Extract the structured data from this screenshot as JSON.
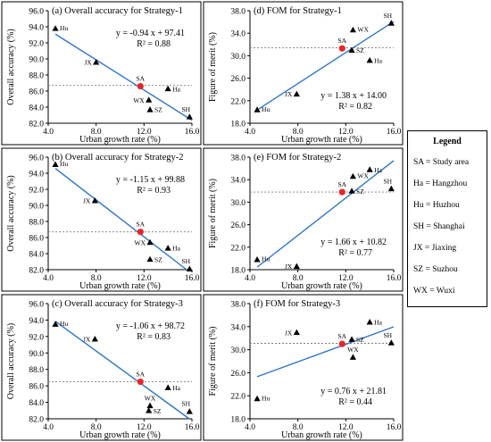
{
  "chart_data": [
    {
      "type": "scatter",
      "panel": "(a)",
      "title": "(a) Overall accuracy for Strategy-1",
      "xlabel": "Urban growth rate (%)",
      "ylabel": "Overall accuracy (%)",
      "xlim": [
        4.0,
        16.0
      ],
      "ylim": [
        82.0,
        96.0
      ],
      "xticks": [
        "4.0",
        "8.0",
        "12.0",
        "16.0"
      ],
      "yticks": [
        "82.0",
        "84.0",
        "86.0",
        "88.0",
        "90.0",
        "92.0",
        "94.0",
        "96.0"
      ],
      "reference_y": 86.7,
      "points": [
        {
          "label": "Hu",
          "x": 4.6,
          "y": 93.8
        },
        {
          "label": "JX",
          "x": 8.0,
          "y": 89.6
        },
        {
          "label": "SA",
          "x": 11.7,
          "y": 86.6,
          "highlight": true
        },
        {
          "label": "Ha",
          "x": 14.0,
          "y": 86.3
        },
        {
          "label": "WX",
          "x": 12.4,
          "y": 84.9
        },
        {
          "label": "SZ",
          "x": 12.5,
          "y": 83.7
        },
        {
          "label": "SH",
          "x": 15.8,
          "y": 82.8
        }
      ],
      "fit": {
        "slope": -0.94,
        "intercept": 97.41
      },
      "equation": "y = -0.94 x + 97.41",
      "r2": "R² = 0.88"
    },
    {
      "type": "scatter",
      "panel": "(d)",
      "title": "(d) FOM for Strategy-1",
      "xlabel": "Urban growth rate (%)",
      "ylabel": "Figure of merit (%)",
      "xlim": [
        4.0,
        16.0
      ],
      "ylim": [
        18.0,
        38.0
      ],
      "xticks": [
        "4.0",
        "8.0",
        "12.0",
        "16.0"
      ],
      "yticks": [
        "18.0",
        "22.0",
        "26.0",
        "30.0",
        "34.0",
        "38.0"
      ],
      "reference_y": 31.4,
      "points": [
        {
          "label": "Hu",
          "x": 4.6,
          "y": 20.4
        },
        {
          "label": "JX",
          "x": 7.9,
          "y": 23.2
        },
        {
          "label": "SA",
          "x": 11.7,
          "y": 31.3,
          "highlight": true
        },
        {
          "label": "WX",
          "x": 12.6,
          "y": 34.6
        },
        {
          "label": "SZ",
          "x": 12.5,
          "y": 31.0
        },
        {
          "label": "Ha",
          "x": 14.0,
          "y": 29.2
        },
        {
          "label": "SH",
          "x": 15.8,
          "y": 35.8
        }
      ],
      "fit": {
        "slope": 1.38,
        "intercept": 14.0
      },
      "equation": "y = 1.38 x + 14.00",
      "r2": "R² = 0.82"
    },
    {
      "type": "scatter",
      "panel": "(b)",
      "title": "(b) Overall accuracy for Strategy-2",
      "xlabel": "Urban growth rate (%)",
      "ylabel": "Overall accuracy (%)",
      "xlim": [
        4.0,
        16.0
      ],
      "ylim": [
        82.0,
        96.0
      ],
      "xticks": [
        "4.0",
        "8.0",
        "12.0",
        "16.0"
      ],
      "yticks": [
        "82.0",
        "84.0",
        "86.0",
        "88.0",
        "90.0",
        "92.0",
        "94.0",
        "96.0"
      ],
      "reference_y": 86.7,
      "points": [
        {
          "label": "Hu",
          "x": 4.6,
          "y": 95.1
        },
        {
          "label": "JX",
          "x": 7.9,
          "y": 90.6
        },
        {
          "label": "SA",
          "x": 11.7,
          "y": 86.7,
          "highlight": true
        },
        {
          "label": "WX",
          "x": 12.5,
          "y": 85.4
        },
        {
          "label": "Ha",
          "x": 14.0,
          "y": 84.7
        },
        {
          "label": "SZ",
          "x": 12.5,
          "y": 83.3
        },
        {
          "label": "SH",
          "x": 15.8,
          "y": 82.1
        }
      ],
      "fit": {
        "slope": -1.15,
        "intercept": 99.88
      },
      "equation": "y = -1.15 x + 99.88",
      "r2": "R² = 0.93"
    },
    {
      "type": "scatter",
      "panel": "(e)",
      "title": "(e) FOM for Strategy-2",
      "xlabel": "Urban growth rate (%)",
      "ylabel": "Figure of merit (%)",
      "xlim": [
        4.0,
        16.0
      ],
      "ylim": [
        18.0,
        38.0
      ],
      "xticks": [
        "4.0",
        "8.0",
        "12.0",
        "16.0"
      ],
      "yticks": [
        "18.0",
        "22.0",
        "26.0",
        "30.0",
        "34.0",
        "38.0"
      ],
      "reference_y": 31.8,
      "points": [
        {
          "label": "Hu",
          "x": 4.6,
          "y": 19.8
        },
        {
          "label": "JX",
          "x": 7.9,
          "y": 18.6
        },
        {
          "label": "SA",
          "x": 11.7,
          "y": 31.8,
          "highlight": true
        },
        {
          "label": "WX",
          "x": 12.6,
          "y": 34.6
        },
        {
          "label": "SZ",
          "x": 12.5,
          "y": 32.0
        },
        {
          "label": "Ha",
          "x": 14.0,
          "y": 35.8
        },
        {
          "label": "SH",
          "x": 15.8,
          "y": 32.4
        }
      ],
      "fit": {
        "slope": 1.66,
        "intercept": 10.82
      },
      "equation": "y = 1.66 x + 10.82",
      "r2": "R² = 0.77"
    },
    {
      "type": "scatter",
      "panel": "(c)",
      "title": "(c) Overall accuracy for Strategy-3",
      "xlabel": "Urban growth rate (%)",
      "ylabel": "Overall accuracy (%)",
      "xlim": [
        4.0,
        16.0
      ],
      "ylim": [
        82.0,
        96.0
      ],
      "xticks": [
        "4.0",
        "8.0",
        "12.0",
        "16.0"
      ],
      "yticks": [
        "82.0",
        "84.0",
        "86.0",
        "88.0",
        "90.0",
        "92.0",
        "94.0",
        "96.0"
      ],
      "reference_y": 86.5,
      "points": [
        {
          "label": "Hu",
          "x": 4.6,
          "y": 93.5
        },
        {
          "label": "JX",
          "x": 7.9,
          "y": 91.7
        },
        {
          "label": "SA",
          "x": 11.7,
          "y": 86.5,
          "highlight": true
        },
        {
          "label": "Ha",
          "x": 14.0,
          "y": 85.8
        },
        {
          "label": "WX",
          "x": 12.5,
          "y": 83.6
        },
        {
          "label": "SZ",
          "x": 12.4,
          "y": 83.0
        },
        {
          "label": "SH",
          "x": 15.8,
          "y": 82.9
        }
      ],
      "fit": {
        "slope": -1.06,
        "intercept": 98.72
      },
      "equation": "y = -1.06 x + 98.72",
      "r2": "R² = 0.83"
    },
    {
      "type": "scatter",
      "panel": "(f)",
      "title": "(f) FOM for Strategy-3",
      "xlabel": "Urban growth rate (%)",
      "ylabel": "Figure of merit (%)",
      "xlim": [
        4.0,
        16.0
      ],
      "ylim": [
        18.0,
        38.0
      ],
      "xticks": [
        "4.0",
        "8.0",
        "12.0",
        "16.0"
      ],
      "yticks": [
        "18.0",
        "22.0",
        "26.0",
        "30.0",
        "34.0",
        "38.0"
      ],
      "reference_y": 31.1,
      "points": [
        {
          "label": "Hu",
          "x": 4.6,
          "y": 21.5
        },
        {
          "label": "JX",
          "x": 7.9,
          "y": 33.0
        },
        {
          "label": "SA",
          "x": 11.7,
          "y": 31.0,
          "highlight": true
        },
        {
          "label": "SZ",
          "x": 12.5,
          "y": 31.8
        },
        {
          "label": "WX",
          "x": 12.6,
          "y": 28.7
        },
        {
          "label": "Ha",
          "x": 14.0,
          "y": 34.8
        },
        {
          "label": "SH",
          "x": 15.8,
          "y": 31.2
        }
      ],
      "fit": {
        "slope": 0.76,
        "intercept": 21.81
      },
      "equation": "y = 0.76 x + 21.81",
      "r2": "R² = 0.44"
    }
  ],
  "legend": {
    "title": "Legend",
    "items": [
      "SA = Study area",
      "Ha = Hangzhou",
      "Hu = Huzhou",
      "SH = Shanghai",
      "JX = Jiaxing",
      "SZ = Suzhou",
      "WX = Wuxi"
    ]
  },
  "colors": {
    "fit_line": "#2e75c6",
    "study_area": "#e8242a",
    "marker": "#000000",
    "reference_line": "#7f7f7f"
  }
}
